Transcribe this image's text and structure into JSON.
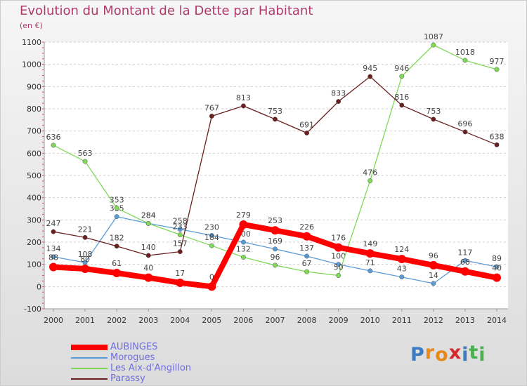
{
  "title": "Evolution du Montant de la Dette par Habitant",
  "unit_label": "(en €)",
  "logo_text": "Proxiti",
  "logo_letters": [
    {
      "ch": "P",
      "color": "#3b7cc4"
    },
    {
      "ch": "r",
      "color": "#e88a1a"
    },
    {
      "ch": "o",
      "color": "#e88a1a"
    },
    {
      "ch": "x",
      "color": "#d42a2a"
    },
    {
      "ch": "i",
      "color": "#3b7cc4"
    },
    {
      "ch": "t",
      "color": "#4caf50"
    },
    {
      "ch": "i",
      "color": "#4caf50"
    }
  ],
  "chart_data": {
    "type": "line",
    "title": "Evolution du Montant de la Dette par Habitant",
    "ylabel": "(en €)",
    "x": [
      "2000",
      "2001",
      "2002",
      "2003",
      "2004",
      "2005",
      "2006",
      "2007",
      "2008",
      "2009",
      "2010",
      "2011",
      "2012",
      "2013",
      "2014"
    ],
    "ylim": [
      -100,
      1100
    ],
    "yticks": [
      -100,
      0,
      100,
      200,
      300,
      400,
      500,
      600,
      700,
      800,
      900,
      1000,
      1100
    ],
    "grid": "horizontal-dashed",
    "legend_position": "bottom-left",
    "series": [
      {
        "name": "AUBINGES",
        "color": "#ff0000",
        "emphasis": true,
        "values": [
          88,
          80,
          61,
          40,
          17,
          0,
          279,
          253,
          226,
          176,
          149,
          124,
          96,
          68,
          40
        ]
      },
      {
        "name": "Morogues",
        "color": "#5b9bd5",
        "values": [
          134,
          108,
          315,
          284,
          258,
          230,
          200,
          169,
          137,
          100,
          71,
          43,
          14,
          117,
          89
        ]
      },
      {
        "name": "Les Aix-d'Angillon",
        "color": "#7ed957",
        "values": [
          636,
          563,
          353,
          284,
          233,
          184,
          132,
          96,
          67,
          50,
          476,
          946,
          1087,
          1018,
          977
        ]
      },
      {
        "name": "Parassy",
        "color": "#6b1e1e",
        "values": [
          247,
          221,
          182,
          140,
          157,
          767,
          813,
          753,
          691,
          833,
          945,
          816,
          753,
          696,
          638
        ]
      }
    ]
  }
}
